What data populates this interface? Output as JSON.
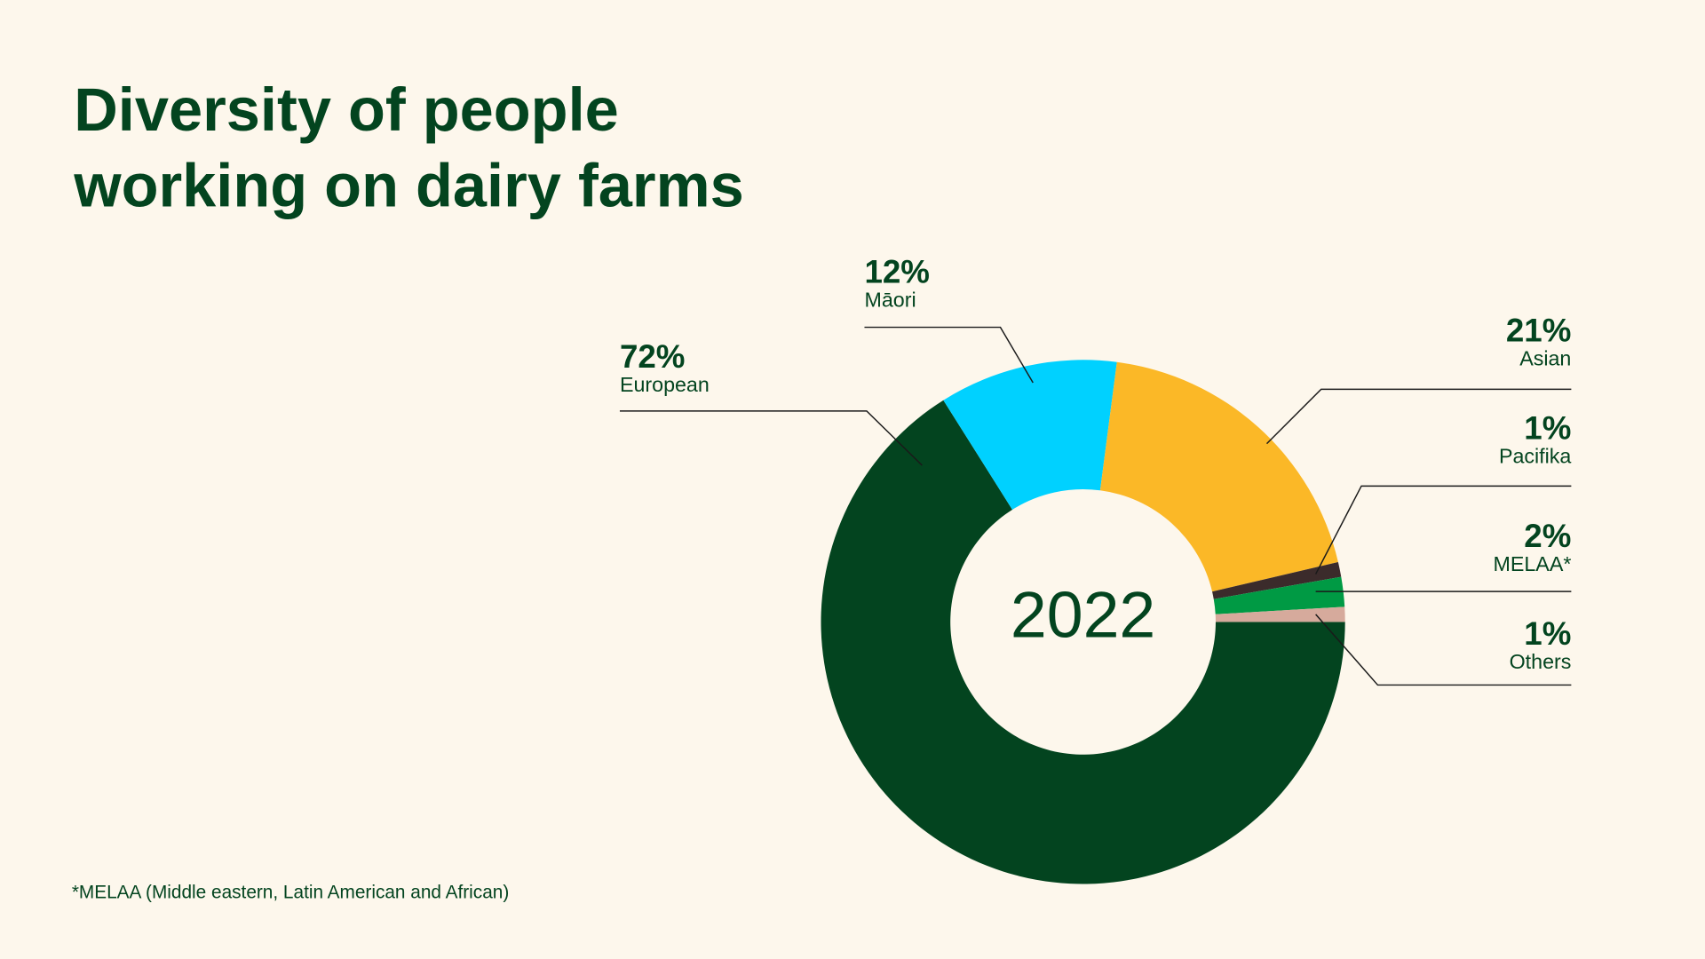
{
  "chart_data": {
    "type": "donut",
    "title": "Diversity of people working on dairy farms",
    "center_label": "2022",
    "categories": [
      "European",
      "Māori",
      "Asian",
      "Pacifika",
      "MELAA*",
      "Others"
    ],
    "values": [
      72,
      12,
      21,
      1,
      2,
      1
    ],
    "value_labels": [
      "72%",
      "12%",
      "21%",
      "1%",
      "2%",
      "1%"
    ],
    "colors": [
      "#03441f",
      "#00d1ff",
      "#fbb827",
      "#3b2b2b",
      "#009a44",
      "#d6aa9c"
    ],
    "footnote": "*MELAA (Middle eastern, Latin American and African)"
  }
}
